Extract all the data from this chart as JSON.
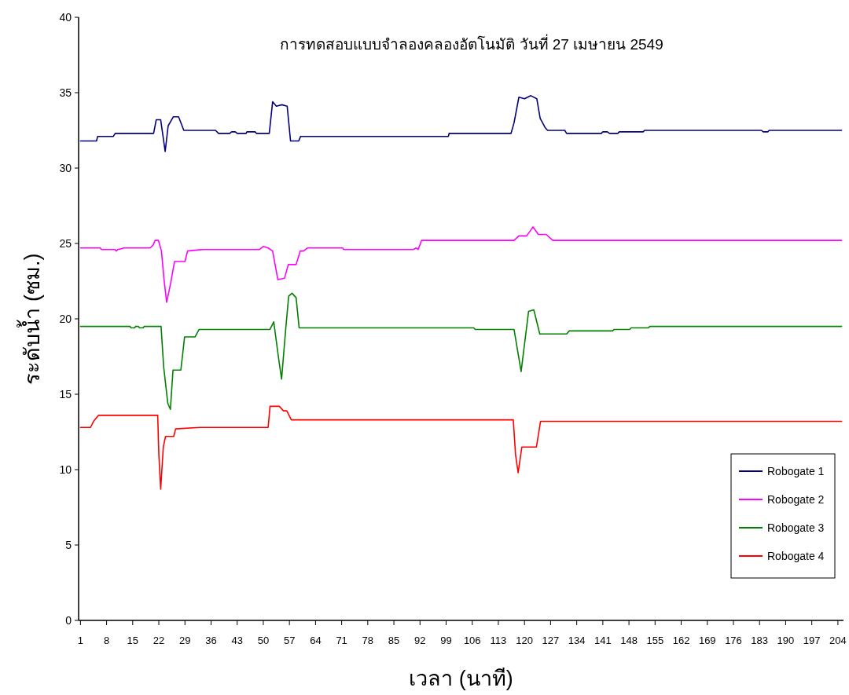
{
  "chart_data": {
    "type": "line",
    "title": "การทดสอบแบบจำลองคลองอัตโนมัติ วันที่ 27 เมษายน 2549",
    "xlabel": "เวลา (นาที)",
    "ylabel": "ระดับน้ำ (ซม.)",
    "xlim": [
      0.5,
      205.5
    ],
    "xticks": [
      1,
      8,
      15,
      22,
      29,
      36,
      43,
      50,
      57,
      64,
      71,
      78,
      85,
      92,
      99,
      106,
      113,
      120,
      127,
      134,
      141,
      148,
      155,
      162,
      169,
      176,
      183,
      190,
      197,
      204
    ],
    "ylim": [
      0,
      40
    ],
    "yticks": [
      0,
      5,
      10,
      15,
      20,
      25,
      30,
      35,
      40
    ],
    "legend": "bottom right",
    "line_style": "solid",
    "series": [
      {
        "name": "Robogate 1",
        "color": "#000080",
        "x": [
          1,
          5.3,
          5.6,
          9.8,
          10.3,
          20.6,
          21.3,
          22.5,
          23.7,
          24.5,
          25.9,
          27.3,
          28.7,
          37.2,
          38,
          41,
          41.5,
          42.5,
          43,
          45.4,
          45.6,
          47.8,
          48.2,
          51.6,
          52.5,
          53.5,
          55,
          56.4,
          57.3,
          59.5,
          60,
          99.6,
          99.8,
          116.4,
          117.2,
          118.5,
          120,
          121.7,
          123.3,
          124.2,
          125.5,
          126.2,
          130.8,
          131.3,
          140.6,
          141,
          142.2,
          142.8,
          145,
          145.4,
          151.8,
          152.2,
          183.5,
          184,
          185.2,
          185.6,
          205
        ],
        "values": [
          31.8,
          31.8,
          32.1,
          32.1,
          32.3,
          32.3,
          33.2,
          33.2,
          31.1,
          32.8,
          33.4,
          33.4,
          32.5,
          32.5,
          32.3,
          32.3,
          32.4,
          32.4,
          32.3,
          32.3,
          32.4,
          32.4,
          32.3,
          32.3,
          34.4,
          34.1,
          34.2,
          34.1,
          31.8,
          31.8,
          32.1,
          32.1,
          32.3,
          32.3,
          33,
          34.7,
          34.6,
          34.8,
          34.6,
          33.3,
          32.7,
          32.5,
          32.5,
          32.3,
          32.3,
          32.4,
          32.4,
          32.3,
          32.3,
          32.4,
          32.4,
          32.5,
          32.5,
          32.4,
          32.4,
          32.5,
          32.5
        ]
      },
      {
        "name": "Robogate 2",
        "color": "#ff00ff",
        "x": [
          1,
          6.3,
          6.6,
          10.2,
          10.6,
          11,
          12.7,
          19.7,
          20.5,
          21,
          21.9,
          22.7,
          23.4,
          24.1,
          25.2,
          26.2,
          29,
          29.7,
          33.9,
          49,
          50,
          51.3,
          52.5,
          53.9,
          55.7,
          56.7,
          58.8,
          59.9,
          60.8,
          61.8,
          71.3,
          71.5,
          90.2,
          91,
          91.5,
          92.4,
          117.2,
          118.5,
          120.6,
          122.3,
          123.7,
          125.8,
          127.6,
          205
        ],
        "values": [
          24.7,
          24.7,
          24.6,
          24.6,
          24.5,
          24.6,
          24.7,
          24.7,
          24.9,
          25.2,
          25.2,
          24.5,
          22.6,
          21.1,
          22.4,
          23.8,
          23.8,
          24.5,
          24.6,
          24.6,
          24.8,
          24.7,
          24.5,
          22.6,
          22.7,
          23.6,
          23.6,
          24.5,
          24.5,
          24.7,
          24.7,
          24.6,
          24.6,
          24.7,
          24.6,
          25.2,
          25.2,
          25.5,
          25.5,
          26.1,
          25.6,
          25.6,
          25.2,
          25.2
        ]
      },
      {
        "name": "Robogate 3",
        "color": "#008000",
        "x": [
          1,
          14.3,
          14.5,
          15.5,
          15.8,
          16.5,
          16.8,
          17.8,
          18.1,
          22.6,
          23.3,
          24.4,
          25.1,
          25.8,
          27.9,
          28.9,
          31.7,
          32.8,
          51.8,
          52.8,
          54.2,
          54.9,
          56,
          56.8,
          57.7,
          58.8,
          59.6,
          106.4,
          106.8,
          117.2,
          119.1,
          121.1,
          122.5,
          124.1,
          131.3,
          132,
          143.6,
          144,
          148.2,
          148.6,
          153.2,
          153.6,
          205
        ],
        "values": [
          19.5,
          19.5,
          19.4,
          19.4,
          19.5,
          19.5,
          19.4,
          19.4,
          19.5,
          19.5,
          16.8,
          14.4,
          14,
          16.6,
          16.6,
          18.8,
          18.8,
          19.3,
          19.3,
          19.8,
          17.2,
          16,
          19.3,
          21.5,
          21.7,
          21.4,
          19.4,
          19.4,
          19.3,
          19.3,
          16.5,
          20.5,
          20.6,
          19,
          19,
          19.2,
          19.2,
          19.3,
          19.3,
          19.4,
          19.4,
          19.5,
          19.5
        ]
      },
      {
        "name": "Robogate 4",
        "color": "#ff0000",
        "x": [
          1,
          3.7,
          4.5,
          5.8,
          21.7,
          22,
          22.5,
          23.2,
          23.8,
          26,
          26.5,
          33,
          51.3,
          51.8,
          54.3,
          55.4,
          56.3,
          57.5,
          117,
          117.6,
          118.3,
          119.3,
          123.2,
          124.3,
          205
        ],
        "values": [
          12.8,
          12.8,
          13.2,
          13.6,
          13.6,
          11,
          8.7,
          11.5,
          12.2,
          12.2,
          12.7,
          12.8,
          12.8,
          14.2,
          14.2,
          13.9,
          13.9,
          13.3,
          13.3,
          11,
          9.8,
          11.5,
          11.5,
          13.2,
          13.2
        ]
      }
    ]
  }
}
